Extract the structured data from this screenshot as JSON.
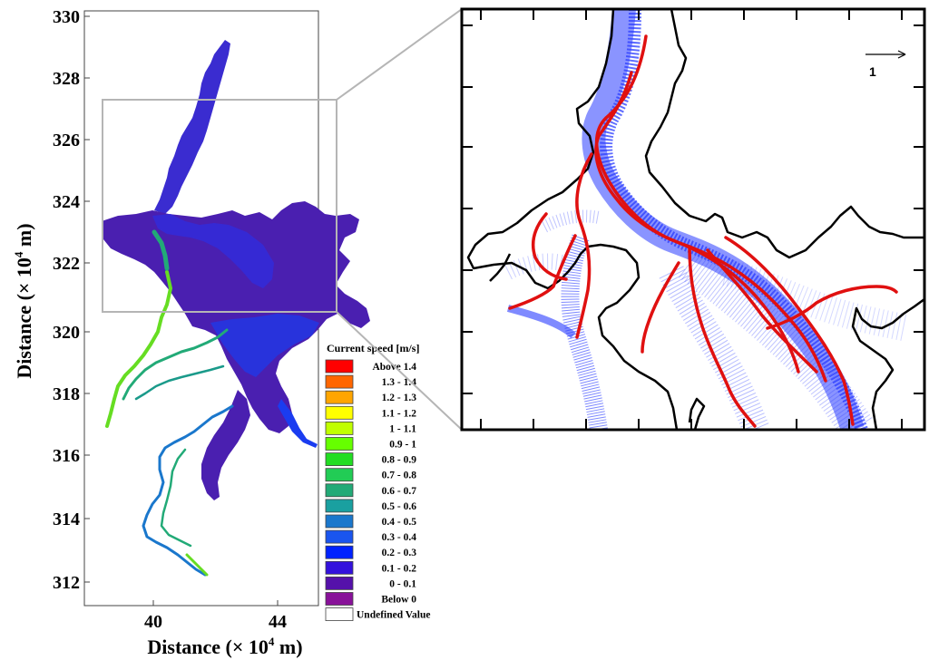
{
  "main_map": {
    "y_ticks": [
      "330",
      "328",
      "326",
      "324",
      "322",
      "320",
      "318",
      "316",
      "314",
      "312"
    ],
    "x_ticks": [
      "40",
      "44"
    ],
    "y_axis_label": "Distance (× 10",
    "y_axis_label_sup": "4",
    "y_axis_label_end": " m)",
    "x_axis_label": "Distance (× 10",
    "x_axis_label_sup": "4",
    "x_axis_label_end": " m)"
  },
  "legend": {
    "title": "Current speed [m/s]",
    "items": [
      {
        "label": "Above  1.4",
        "color": "#ff0000"
      },
      {
        "label": "1.3 - 1.4",
        "color": "#ff6600"
      },
      {
        "label": "1.2 - 1.3",
        "color": "#ffa500"
      },
      {
        "label": "1.1 - 1.2",
        "color": "#ffff00"
      },
      {
        "label": "1 - 1.1",
        "color": "#c0ff00"
      },
      {
        "label": "0.9 -    1",
        "color": "#66ff00"
      },
      {
        "label": "0.8 - 0.9",
        "color": "#22dd22"
      },
      {
        "label": "0.7 - 0.8",
        "color": "#22cc55"
      },
      {
        "label": "0.6 - 0.7",
        "color": "#22aa77"
      },
      {
        "label": "0.5 - 0.6",
        "color": "#1aa0a0"
      },
      {
        "label": "0.4 - 0.5",
        "color": "#1a77cc"
      },
      {
        "label": "0.3 - 0.4",
        "color": "#1a55ee"
      },
      {
        "label": "0.2 - 0.3",
        "color": "#0022ff"
      },
      {
        "label": "0.1 - 0.2",
        "color": "#3311dd"
      },
      {
        "label": "0 - 0.1",
        "color": "#5511aa"
      },
      {
        "label": "Below    0",
        "color": "#881199"
      },
      {
        "label": "Undefined Value",
        "color": "#ffffff"
      }
    ]
  },
  "inset": {
    "scale_vector_label": "1"
  },
  "colors": {
    "water_main": "#4a1fb0",
    "water_blue": "#1a3cf0",
    "vector_blue": "#2a3cff",
    "streamline_red": "#e01010",
    "shore": "#000000",
    "frame_gray": "#b5b5b5"
  }
}
